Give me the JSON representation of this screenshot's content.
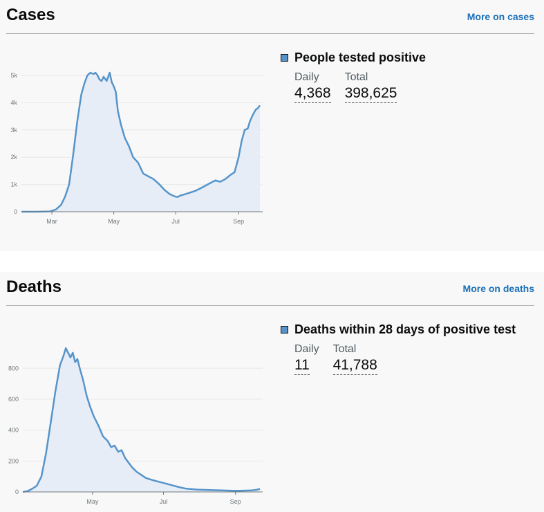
{
  "cases": {
    "title": "Cases",
    "link": "More on cases",
    "summary_label": "People tested positive",
    "daily_label": "Daily",
    "daily_value": "4,368",
    "total_label": "Total",
    "total_value": "398,625",
    "series_color": "#5694ca",
    "fill_color": "#e6edf7",
    "chart_data": {
      "type": "area",
      "ylim": [
        0,
        5000
      ],
      "yticks": [
        0,
        1000,
        2000,
        3000,
        4000,
        5000
      ],
      "ytick_labels": [
        "0",
        "1k",
        "2k",
        "3k",
        "4k",
        "5k"
      ],
      "xtick_labels": [
        "Mar",
        "May",
        "Jul",
        "Sep"
      ],
      "xlim": [
        "2020-01-31",
        "2020-09-22"
      ],
      "xtick_dates": [
        "2020-03-01",
        "2020-05-01",
        "2020-07-01",
        "2020-09-01"
      ],
      "grid": true,
      "series": [
        {
          "x": [
            "2020-01-31",
            "2020-02-15",
            "2020-02-28",
            "2020-03-05",
            "2020-03-10",
            "2020-03-14",
            "2020-03-18",
            "2020-03-22",
            "2020-03-26",
            "2020-03-30",
            "2020-04-02",
            "2020-04-05",
            "2020-04-08",
            "2020-04-11",
            "2020-04-13",
            "2020-04-15",
            "2020-04-17",
            "2020-04-19",
            "2020-04-21",
            "2020-04-24",
            "2020-04-27",
            "2020-04-29",
            "2020-05-01",
            "2020-05-03",
            "2020-05-05",
            "2020-05-08",
            "2020-05-12",
            "2020-05-16",
            "2020-05-20",
            "2020-05-25",
            "2020-05-30",
            "2020-06-04",
            "2020-06-09",
            "2020-06-15",
            "2020-06-20",
            "2020-06-25",
            "2020-06-30",
            "2020-07-03",
            "2020-07-06",
            "2020-07-10",
            "2020-07-15",
            "2020-07-20",
            "2020-07-25",
            "2020-07-30",
            "2020-08-04",
            "2020-08-09",
            "2020-08-14",
            "2020-08-19",
            "2020-08-24",
            "2020-08-28",
            "2020-09-01",
            "2020-09-04",
            "2020-09-07",
            "2020-09-10",
            "2020-09-12",
            "2020-09-15",
            "2020-09-18",
            "2020-09-20",
            "2020-09-22"
          ],
          "y": [
            0,
            0,
            10,
            80,
            250,
            550,
            1000,
            2100,
            3300,
            4300,
            4700,
            5000,
            5100,
            5050,
            5100,
            5000,
            4850,
            4800,
            4950,
            4800,
            5100,
            4750,
            4600,
            4400,
            3700,
            3200,
            2700,
            2400,
            2000,
            1800,
            1400,
            1300,
            1200,
            1000,
            800,
            650,
            560,
            540,
            600,
            640,
            700,
            760,
            850,
            950,
            1050,
            1150,
            1100,
            1200,
            1350,
            1450,
            2000,
            2600,
            3000,
            3050,
            3300,
            3550,
            3750,
            3800,
            3900
          ]
        }
      ]
    }
  },
  "deaths": {
    "title": "Deaths",
    "link": "More on deaths",
    "summary_label": "Deaths within 28 days of positive test",
    "daily_label": "Daily",
    "daily_value": "11",
    "total_label": "Total",
    "total_value": "41,788",
    "series_color": "#5694ca",
    "fill_color": "#e6edf7",
    "chart_data": {
      "type": "area",
      "ylim": [
        0,
        940
      ],
      "yticks": [
        0,
        200,
        400,
        600,
        800
      ],
      "ytick_labels": [
        "0",
        "200",
        "400",
        "600",
        "800"
      ],
      "xtick_labels": [
        "May",
        "Jul",
        "Sep"
      ],
      "xlim": [
        "2020-03-02",
        "2020-09-22"
      ],
      "xtick_dates": [
        "2020-05-01",
        "2020-07-01",
        "2020-09-01"
      ],
      "grid": true,
      "series": [
        {
          "x": [
            "2020-03-02",
            "2020-03-06",
            "2020-03-10",
            "2020-03-14",
            "2020-03-18",
            "2020-03-22",
            "2020-03-26",
            "2020-03-30",
            "2020-04-03",
            "2020-04-06",
            "2020-04-08",
            "2020-04-10",
            "2020-04-12",
            "2020-04-14",
            "2020-04-16",
            "2020-04-18",
            "2020-04-20",
            "2020-04-23",
            "2020-04-26",
            "2020-04-29",
            "2020-05-02",
            "2020-05-06",
            "2020-05-10",
            "2020-05-14",
            "2020-05-17",
            "2020-05-20",
            "2020-05-23",
            "2020-05-26",
            "2020-05-29",
            "2020-06-01",
            "2020-06-04",
            "2020-06-08",
            "2020-06-12",
            "2020-06-16",
            "2020-06-20",
            "2020-06-25",
            "2020-06-30",
            "2020-07-05",
            "2020-07-10",
            "2020-07-15",
            "2020-07-20",
            "2020-07-30",
            "2020-08-10",
            "2020-08-20",
            "2020-08-30",
            "2020-09-05",
            "2020-09-10",
            "2020-09-15",
            "2020-09-20",
            "2020-09-22"
          ],
          "y": [
            0,
            5,
            20,
            40,
            100,
            250,
            450,
            650,
            820,
            880,
            930,
            900,
            870,
            900,
            840,
            860,
            800,
            720,
            620,
            550,
            490,
            430,
            360,
            330,
            290,
            300,
            260,
            270,
            220,
            190,
            160,
            130,
            110,
            90,
            80,
            70,
            60,
            50,
            40,
            30,
            22,
            15,
            12,
            10,
            8,
            8,
            9,
            10,
            15,
            20
          ]
        }
      ]
    }
  }
}
